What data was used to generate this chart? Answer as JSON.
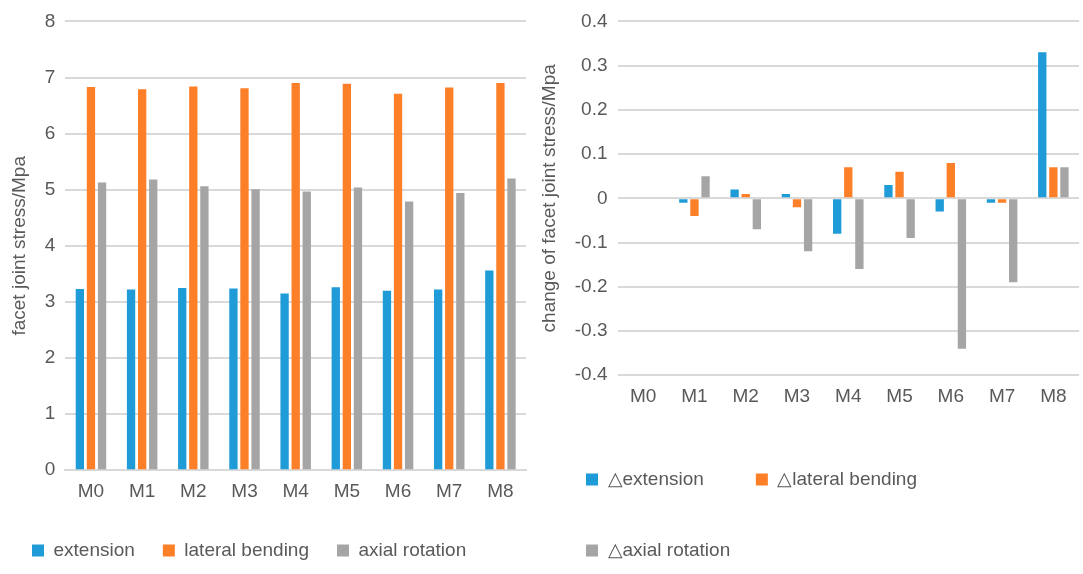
{
  "chart_data": [
    {
      "type": "bar",
      "ylabel": "facet joint stress/Mpa",
      "categories": [
        "M0",
        "M1",
        "M2",
        "M3",
        "M4",
        "M5",
        "M6",
        "M7",
        "M8"
      ],
      "series": [
        {
          "name": "extension",
          "color": "#1f9bd7",
          "values": [
            3.23,
            3.22,
            3.25,
            3.24,
            3.15,
            3.26,
            3.2,
            3.22,
            3.56
          ]
        },
        {
          "name": "lateral bending",
          "color": "#fd7f28",
          "values": [
            6.83,
            6.79,
            6.84,
            6.81,
            6.9,
            6.89,
            6.71,
            6.82,
            6.9
          ]
        },
        {
          "name": "axial rotation",
          "color": "#a5a5a5",
          "values": [
            5.13,
            5.18,
            5.06,
            5.01,
            4.97,
            5.04,
            4.79,
            4.94,
            5.2
          ]
        }
      ],
      "ylim": [
        0,
        8
      ],
      "yticks": [
        0,
        1,
        2,
        3,
        4,
        5,
        6,
        7,
        8
      ],
      "grid": "y",
      "legend": "bottom"
    },
    {
      "type": "bar",
      "ylabel": "change of facet joint stress/Mpa",
      "categories": [
        "M0",
        "M1",
        "M2",
        "M3",
        "M4",
        "M5",
        "M6",
        "M7",
        "M8"
      ],
      "series": [
        {
          "name": "△extension",
          "color": "#1f9bd7",
          "values": [
            0,
            -0.01,
            0.02,
            0.01,
            -0.08,
            0.03,
            -0.03,
            -0.01,
            0.33
          ]
        },
        {
          "name": "△lateral bending",
          "color": "#fd7f28",
          "values": [
            0,
            -0.04,
            0.01,
            -0.02,
            0.07,
            0.06,
            0.08,
            -0.01,
            0.07
          ]
        },
        {
          "name": "△axial rotation",
          "color": "#a5a5a5",
          "values": [
            0,
            0.05,
            -0.07,
            -0.12,
            -0.16,
            -0.09,
            -0.34,
            -0.19,
            0.07
          ]
        }
      ],
      "ylim": [
        -0.4,
        0.4
      ],
      "yticks": [
        -0.4,
        -0.3,
        -0.2,
        -0.1,
        0,
        0.1,
        0.2,
        0.3,
        0.4
      ],
      "grid": "y",
      "legend": "bottom"
    }
  ]
}
